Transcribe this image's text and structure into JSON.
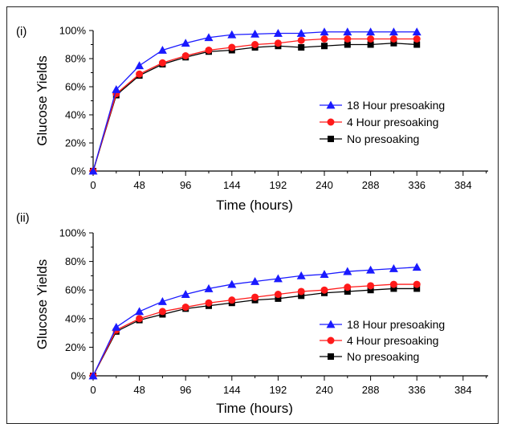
{
  "chart_data": [
    {
      "type": "line",
      "panel_label": "(i)",
      "xlabel": "Time (hours)",
      "ylabel": "Glucose Yields",
      "x_ticks": [
        "0",
        "48",
        "96",
        "144",
        "192",
        "240",
        "288",
        "336",
        "384"
      ],
      "y_ticks": [
        "0%",
        "20%",
        "40%",
        "60%",
        "80%",
        "100%"
      ],
      "xlim": [
        0,
        410
      ],
      "ylim": [
        0,
        100
      ],
      "legend_position": "center-right",
      "x": [
        0,
        24,
        48,
        72,
        96,
        120,
        144,
        168,
        192,
        216,
        240,
        264,
        288,
        312,
        336
      ],
      "series": [
        {
          "name": "18 Hour presoaking",
          "color": "#1a1aff",
          "marker": "triangle",
          "values": [
            0,
            58,
            75,
            86,
            91,
            95,
            97,
            97.5,
            98,
            98,
            99,
            99,
            99,
            99,
            99
          ]
        },
        {
          "name": "4 Hour presoaking",
          "color": "#ff1a1a",
          "marker": "circle",
          "values": [
            0,
            55,
            69,
            77,
            82,
            86,
            88,
            90,
            91,
            93,
            94,
            94,
            94,
            94,
            94
          ]
        },
        {
          "name": "No presoaking",
          "color": "#000000",
          "marker": "square",
          "values": [
            0,
            54,
            68,
            76,
            81,
            85,
            86,
            88,
            89,
            88,
            89,
            90,
            90,
            91,
            90
          ]
        }
      ]
    },
    {
      "type": "line",
      "panel_label": "(ii)",
      "xlabel": "Time (hours)",
      "ylabel": "Glucose Yields",
      "x_ticks": [
        "0",
        "48",
        "96",
        "144",
        "192",
        "240",
        "288",
        "336",
        "384"
      ],
      "y_ticks": [
        "0%",
        "20%",
        "40%",
        "60%",
        "80%",
        "100%"
      ],
      "xlim": [
        0,
        410
      ],
      "ylim": [
        0,
        100
      ],
      "legend_position": "bottom-right",
      "x": [
        0,
        24,
        48,
        72,
        96,
        120,
        144,
        168,
        192,
        216,
        240,
        264,
        288,
        312,
        336
      ],
      "series": [
        {
          "name": "18 Hour presoaking",
          "color": "#1a1aff",
          "marker": "triangle",
          "values": [
            0,
            34,
            45,
            52,
            57,
            61,
            64,
            66,
            68,
            70,
            71,
            73,
            74,
            75,
            76
          ]
        },
        {
          "name": "4 Hour presoaking",
          "color": "#ff1a1a",
          "marker": "circle",
          "values": [
            0,
            32,
            40,
            45,
            48,
            51,
            53,
            55,
            57,
            59,
            60,
            62,
            63,
            64,
            64
          ]
        },
        {
          "name": "No presoaking",
          "color": "#000000",
          "marker": "square",
          "values": [
            0,
            31,
            39,
            43,
            47,
            49,
            51,
            53,
            54,
            56,
            58,
            59,
            60,
            61,
            61
          ]
        }
      ]
    }
  ]
}
